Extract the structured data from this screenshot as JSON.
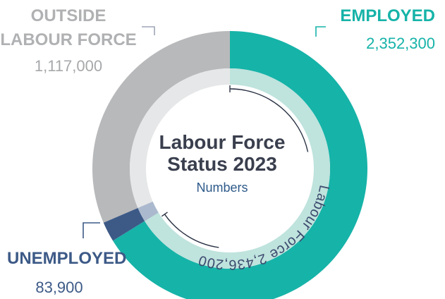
{
  "chart_data": {
    "type": "pie",
    "title_line1": "Labour Force",
    "title_line2": "Status 2023",
    "subtitle": "Numbers",
    "slices": [
      {
        "label": "EMPLOYED",
        "value": 2352300,
        "value_text": "2,352,300",
        "color": "#16b3a8"
      },
      {
        "label": "UNEMPLOYED",
        "value": 83900,
        "value_text": "83,900",
        "color": "#3d5a87"
      },
      {
        "label_line1": "OUTSIDE",
        "label_line2": "LABOUR FORCE",
        "value": 1117000,
        "value_text": "1,117,000",
        "color": "#b8b9bb"
      }
    ],
    "labour_force": {
      "label": "Labour Force 2,436,200",
      "value": 2436200
    }
  },
  "colors": {
    "employed": "#16b3a8",
    "unemployed": "#3d5a87",
    "outside": "#b8b9bb",
    "title": "#3a3f4e",
    "subtitle": "#2e5a8a",
    "arc_label": "#3d4a6e",
    "inner_ring_lf": "#bfe3dd",
    "inner_ring_out": "#e6e7e8",
    "connector": "#9ea7b5"
  }
}
